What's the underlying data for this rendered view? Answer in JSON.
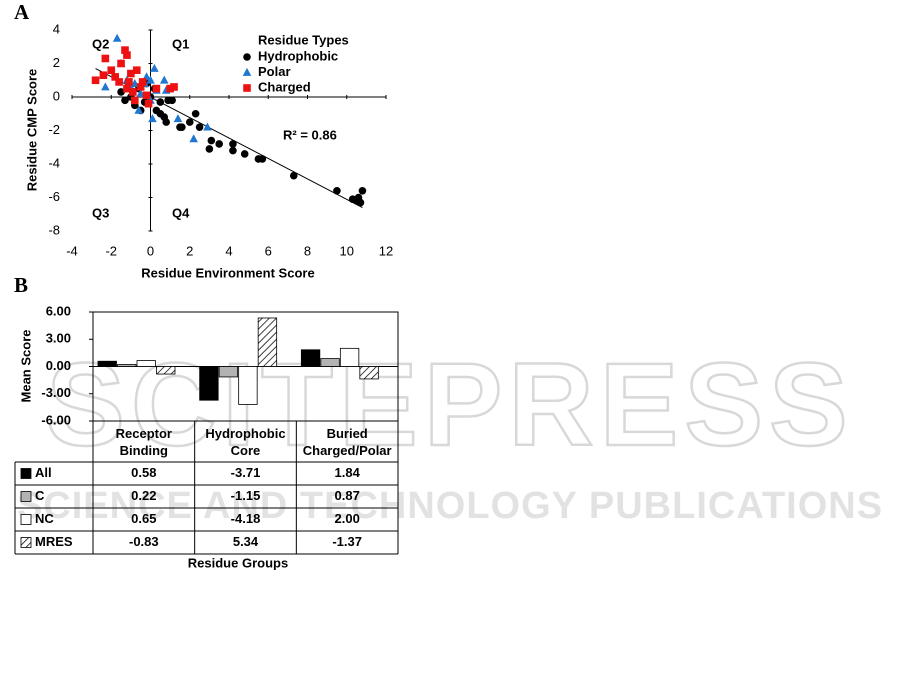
{
  "chart_data": [
    {
      "type": "scatter",
      "panel_label": "A",
      "x_label": "Residue Environment Score",
      "y_label": "Residue CMP Score",
      "legend_title": "Residue Types",
      "legend": "top-right",
      "quadrant_labels": [
        "Q1",
        "Q2",
        "Q3",
        "Q4"
      ],
      "annotation": "R² = 0.86",
      "xlim": [
        -4,
        12
      ],
      "xticks": [
        -4,
        -2,
        0,
        2,
        4,
        6,
        8,
        10,
        12
      ],
      "ylim": [
        -8,
        4
      ],
      "yticks": [
        -8,
        -6,
        -4,
        -2,
        0,
        2,
        4
      ],
      "series": [
        {
          "name": "Hydrophobic",
          "color": "#000000",
          "marker": "circle",
          "x": [
            -1.5,
            -1.3,
            -1,
            -0.8,
            -0.5,
            -0.3,
            0,
            0.2,
            0.3,
            0.5,
            0.7,
            0.8,
            0.9,
            1.1,
            0.5,
            1.5,
            1.6,
            2.0,
            2.3,
            2.5,
            3.0,
            3.1,
            3.5,
            4.2,
            4.2,
            4.8,
            5.5,
            5.7,
            7.3,
            9.5,
            10.3,
            10.6,
            10.7,
            10.8,
            10.5,
            -0.6,
            -0.2
          ],
          "values": [
            0.3,
            -0.2,
            0,
            -0.5,
            -0.8,
            -0.3,
            0,
            0.5,
            -0.8,
            -1,
            -1.2,
            -1.5,
            -0.2,
            -0.2,
            -0.3,
            -1.8,
            -1.8,
            -1.5,
            -1.0,
            -1.8,
            -3.1,
            -2.6,
            -2.8,
            -2.8,
            -3.2,
            -3.4,
            -3.7,
            -3.7,
            -4.7,
            -5.6,
            -6.1,
            -6.0,
            -6.3,
            -5.6,
            -6.2,
            0.5,
            0.8
          ]
        },
        {
          "name": "Polar",
          "color": "#1f77d0",
          "marker": "triangle",
          "x": [
            -1.7,
            -2.3,
            -1.5,
            -1.2,
            -0.8,
            -0.5,
            -0.3,
            -0.2,
            0,
            0.2,
            0.3,
            0.7,
            0.8,
            0.1,
            -0.6,
            1.4,
            2.2,
            2.9,
            -1.0,
            0
          ],
          "values": [
            3.5,
            0.6,
            2.0,
            1.0,
            0.8,
            0.2,
            0.8,
            1.2,
            1.0,
            1.7,
            0.4,
            1.0,
            0.4,
            -1.3,
            -0.8,
            -1.3,
            -2.5,
            -1.8,
            0.5,
            -0.2
          ]
        },
        {
          "name": "Charged",
          "color": "#ee1111",
          "marker": "square",
          "x": [
            -2.8,
            -2.4,
            -2.3,
            -2.0,
            -1.8,
            -1.6,
            -1.5,
            -1.3,
            -1.2,
            -1.2,
            -1.0,
            -0.9,
            -0.8,
            -0.5,
            -0.4,
            -0.2,
            -0.1,
            0.3,
            1.0,
            1.2,
            -0.7,
            -1.1
          ],
          "values": [
            1.0,
            1.3,
            2.3,
            1.6,
            1.2,
            0.9,
            2.0,
            2.8,
            2.5,
            0.5,
            1.4,
            0.3,
            -0.2,
            0.6,
            0.9,
            0.1,
            -0.4,
            0.5,
            0.5,
            0.6,
            1.6,
            0.9
          ]
        }
      ],
      "trendline": {
        "x": [
          -2.8,
          10.8
        ],
        "values": [
          1.7,
          -6.6
        ]
      }
    },
    {
      "type": "bar",
      "panel_label": "B",
      "x_label": "Residue Groups",
      "y_label": "Mean Score",
      "categories": [
        "Receptor Binding",
        "Hydrophobic Core",
        "Buried Charged/Polar"
      ],
      "ylim": [
        -6,
        6
      ],
      "yticks": [
        {
          "value": 6,
          "label": "6.00"
        },
        {
          "value": 3,
          "label": "3.00"
        },
        {
          "value": 0,
          "label": "0.00"
        },
        {
          "value": -3,
          "label": "-3.00"
        },
        {
          "value": -6,
          "label": "-6.00"
        }
      ],
      "series": [
        {
          "name": "All",
          "color": "#000000",
          "values": [
            0.58,
            -3.71,
            1.84
          ]
        },
        {
          "name": "C",
          "color": "#b3b3b3",
          "values": [
            0.22,
            -1.15,
            0.87
          ]
        },
        {
          "name": "NC",
          "color": "#ffffff",
          "values": [
            0.65,
            -4.18,
            2.0
          ],
          "value_labels": [
            "0.65",
            "-4.18",
            "2.00"
          ]
        },
        {
          "name": "MRES",
          "color": "#ffffff",
          "pattern": "hatch",
          "values": [
            -0.83,
            5.34,
            -1.37
          ]
        }
      ]
    }
  ],
  "watermark": {
    "title": "SCITEPRESS",
    "subtitle": "SCIENCE AND TECHNOLOGY PUBLICATIONS"
  }
}
